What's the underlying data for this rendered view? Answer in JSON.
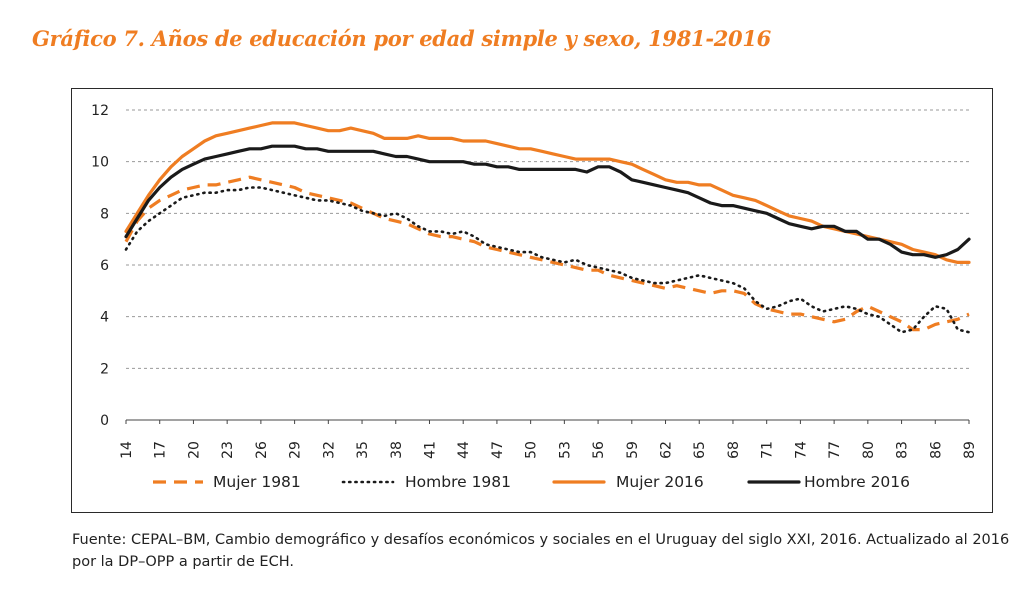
{
  "title": "Gráfico 7. Años de educación por edad simple y sexo, 1981-2016",
  "source": "Fuente: CEPAL–BM, Cambio demográfico y desafíos económicos y sociales en el Uruguay del siglo XXI, 2016. Actualizado al 2016 por la DP–OPP a partir de ECH.",
  "colors": {
    "orange": "#ef7d22",
    "black": "#1a1a1a",
    "grid": "#9a9a9a",
    "title": "#ef7d22"
  },
  "chart_data": {
    "type": "line",
    "title": "",
    "xlabel": "",
    "ylabel": "",
    "xlim": [
      14,
      89
    ],
    "ylim": [
      0,
      12
    ],
    "grid": true,
    "legend_position": "bottom",
    "x": [
      14,
      15,
      16,
      17,
      18,
      19,
      20,
      21,
      22,
      23,
      24,
      25,
      26,
      27,
      28,
      29,
      30,
      31,
      32,
      33,
      34,
      35,
      36,
      37,
      38,
      39,
      40,
      41,
      42,
      43,
      44,
      45,
      46,
      47,
      48,
      49,
      50,
      51,
      52,
      53,
      54,
      55,
      56,
      57,
      58,
      59,
      60,
      61,
      62,
      63,
      64,
      65,
      66,
      67,
      68,
      69,
      70,
      71,
      72,
      73,
      74,
      75,
      76,
      77,
      78,
      79,
      80,
      81,
      82,
      83,
      84,
      85,
      86,
      87,
      88,
      89
    ],
    "x_tick_labels": [
      "14",
      "17",
      "20",
      "23",
      "26",
      "29",
      "32",
      "35",
      "38",
      "41",
      "44",
      "47",
      "50",
      "53",
      "56",
      "59",
      "62",
      "65",
      "68",
      "71",
      "74",
      "77",
      "80",
      "83",
      "86",
      "89"
    ],
    "y_ticks": [
      0,
      2,
      4,
      6,
      8,
      10,
      12
    ],
    "series": [
      {
        "name": "Mujer 1981",
        "style": "dashed",
        "color": "#ef7d22",
        "values": [
          6.9,
          7.7,
          8.2,
          8.5,
          8.7,
          8.9,
          9.0,
          9.1,
          9.1,
          9.2,
          9.3,
          9.4,
          9.3,
          9.2,
          9.1,
          9.0,
          8.8,
          8.7,
          8.6,
          8.5,
          8.4,
          8.2,
          8.0,
          7.8,
          7.7,
          7.6,
          7.4,
          7.2,
          7.1,
          7.1,
          7.0,
          6.9,
          6.7,
          6.6,
          6.5,
          6.4,
          6.3,
          6.2,
          6.1,
          6.0,
          5.9,
          5.8,
          5.8,
          5.6,
          5.5,
          5.4,
          5.3,
          5.2,
          5.1,
          5.2,
          5.1,
          5.0,
          4.9,
          5.0,
          5.0,
          4.9,
          4.5,
          4.3,
          4.2,
          4.1,
          4.1,
          4.0,
          3.9,
          3.8,
          3.9,
          4.2,
          4.4,
          4.2,
          4.0,
          3.8,
          3.5,
          3.5,
          3.7,
          3.8,
          3.9,
          4.1
        ]
      },
      {
        "name": "Hombre 1981",
        "style": "dotted",
        "color": "#1a1a1a",
        "values": [
          6.6,
          7.3,
          7.7,
          8.0,
          8.3,
          8.6,
          8.7,
          8.8,
          8.8,
          8.9,
          8.9,
          9.0,
          9.0,
          8.9,
          8.8,
          8.7,
          8.6,
          8.5,
          8.5,
          8.4,
          8.3,
          8.1,
          8.0,
          7.9,
          8.0,
          7.8,
          7.5,
          7.3,
          7.3,
          7.2,
          7.3,
          7.1,
          6.8,
          6.7,
          6.6,
          6.5,
          6.5,
          6.3,
          6.2,
          6.1,
          6.2,
          6.0,
          5.9,
          5.8,
          5.7,
          5.5,
          5.4,
          5.3,
          5.3,
          5.4,
          5.5,
          5.6,
          5.5,
          5.4,
          5.3,
          5.1,
          4.6,
          4.3,
          4.4,
          4.6,
          4.7,
          4.4,
          4.2,
          4.3,
          4.4,
          4.3,
          4.1,
          4.0,
          3.7,
          3.4,
          3.5,
          4.0,
          4.4,
          4.3,
          3.5,
          3.4
        ]
      },
      {
        "name": "Mujer 2016",
        "style": "solid",
        "color": "#ef7d22",
        "values": [
          7.3,
          8.0,
          8.7,
          9.3,
          9.8,
          10.2,
          10.5,
          10.8,
          11.0,
          11.1,
          11.2,
          11.3,
          11.4,
          11.5,
          11.5,
          11.5,
          11.4,
          11.3,
          11.2,
          11.2,
          11.3,
          11.2,
          11.1,
          10.9,
          10.9,
          10.9,
          11.0,
          10.9,
          10.9,
          10.9,
          10.8,
          10.8,
          10.8,
          10.7,
          10.6,
          10.5,
          10.5,
          10.4,
          10.3,
          10.2,
          10.1,
          10.1,
          10.1,
          10.1,
          10.0,
          9.9,
          9.7,
          9.5,
          9.3,
          9.2,
          9.2,
          9.1,
          9.1,
          8.9,
          8.7,
          8.6,
          8.5,
          8.3,
          8.1,
          7.9,
          7.8,
          7.7,
          7.5,
          7.4,
          7.3,
          7.2,
          7.1,
          7.0,
          6.9,
          6.8,
          6.6,
          6.5,
          6.4,
          6.2,
          6.1,
          6.1
        ]
      },
      {
        "name": "Hombre 2016",
        "style": "solid",
        "color": "#1a1a1a",
        "values": [
          7.1,
          7.8,
          8.5,
          9.0,
          9.4,
          9.7,
          9.9,
          10.1,
          10.2,
          10.3,
          10.4,
          10.5,
          10.5,
          10.6,
          10.6,
          10.6,
          10.5,
          10.5,
          10.4,
          10.4,
          10.4,
          10.4,
          10.4,
          10.3,
          10.2,
          10.2,
          10.1,
          10.0,
          10.0,
          10.0,
          10.0,
          9.9,
          9.9,
          9.8,
          9.8,
          9.7,
          9.7,
          9.7,
          9.7,
          9.7,
          9.7,
          9.6,
          9.8,
          9.8,
          9.6,
          9.3,
          9.2,
          9.1,
          9.0,
          8.9,
          8.8,
          8.6,
          8.4,
          8.3,
          8.3,
          8.2,
          8.1,
          8.0,
          7.8,
          7.6,
          7.5,
          7.4,
          7.5,
          7.5,
          7.3,
          7.3,
          7.0,
          7.0,
          6.8,
          6.5,
          6.4,
          6.4,
          6.3,
          6.4,
          6.6,
          7.0
        ]
      }
    ]
  }
}
